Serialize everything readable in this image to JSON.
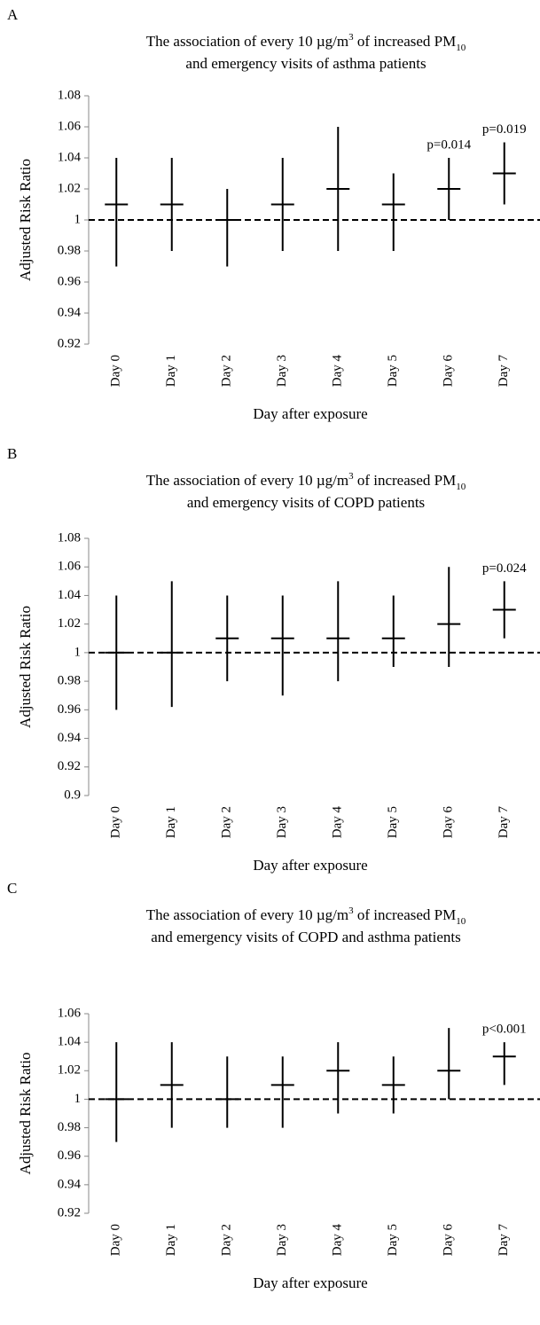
{
  "chart_data": [
    {
      "type": "interval",
      "panel": "A",
      "title": {
        "line1": [
          "The association of every 10 µg/m",
          "3",
          " of increased PM",
          "10"
        ],
        "line2": "and emergency visits of asthma patients"
      },
      "y_label": "Adjusted Risk Ratio",
      "x_label": "Day after exposure",
      "categories": [
        "Day 0",
        "Day 1",
        "Day 2",
        "Day 3",
        "Day 4",
        "Day 5",
        "Day 6",
        "Day 7"
      ],
      "values": [
        1.01,
        1.01,
        1.0,
        1.01,
        1.02,
        1.01,
        1.02,
        1.03
      ],
      "lows": [
        0.97,
        0.98,
        0.97,
        0.98,
        0.98,
        0.98,
        1.0,
        1.01
      ],
      "highs": [
        1.04,
        1.04,
        1.02,
        1.04,
        1.06,
        1.03,
        1.04,
        1.05
      ],
      "reference_line": 1,
      "annotations": [
        {
          "category": "Day 6",
          "text": "p=0.014"
        },
        {
          "category": "Day 7",
          "text": "p=0.019"
        }
      ],
      "ylim": [
        0.92,
        1.08
      ],
      "yticks": [
        0.92,
        0.94,
        0.96,
        0.98,
        1,
        1.02,
        1.04,
        1.06,
        1.08
      ],
      "color": "#000000"
    },
    {
      "type": "interval",
      "panel": "B",
      "title": {
        "line1": [
          "The association of every 10 µg/m",
          "3",
          " of increased PM",
          "10"
        ],
        "line2": "and emergency visits of COPD patients"
      },
      "y_label": "Adjusted Risk Ratio",
      "x_label": "Day after exposure",
      "categories": [
        "Day 0",
        "Day 1",
        "Day 2",
        "Day 3",
        "Day 4",
        "Day 5",
        "Day 6",
        "Day 7"
      ],
      "values": [
        1.0,
        1.0,
        1.01,
        1.01,
        1.01,
        1.01,
        1.02,
        1.03
      ],
      "lows": [
        0.96,
        0.962,
        0.98,
        0.97,
        0.98,
        0.99,
        0.99,
        1.01
      ],
      "highs": [
        1.04,
        1.05,
        1.04,
        1.04,
        1.05,
        1.04,
        1.06,
        1.05
      ],
      "reference_line": 1,
      "annotations": [
        {
          "category": "Day 7",
          "text": "p=0.024"
        }
      ],
      "ylim": [
        0.9,
        1.08
      ],
      "yticks": [
        0.9,
        0.92,
        0.94,
        0.96,
        0.98,
        1,
        1.02,
        1.04,
        1.06,
        1.08
      ],
      "color": "#000000"
    },
    {
      "type": "interval",
      "panel": "C",
      "title": {
        "line1": [
          "The association of every 10 µg/m",
          "3",
          " of increased PM",
          "10"
        ],
        "line2": "and emergency visits of COPD and asthma patients"
      },
      "y_label": "Adjusted Risk Ratio",
      "x_label": "Day after exposure",
      "categories": [
        "Day 0",
        "Day 1",
        "Day 2",
        "Day 3",
        "Day 4",
        "Day 5",
        "Day 6",
        "Day 7"
      ],
      "values": [
        1.0,
        1.01,
        1.0,
        1.01,
        1.02,
        1.01,
        1.02,
        1.03
      ],
      "lows": [
        0.97,
        0.98,
        0.98,
        0.98,
        0.99,
        0.99,
        1.0,
        1.01
      ],
      "highs": [
        1.04,
        1.04,
        1.03,
        1.03,
        1.04,
        1.03,
        1.05,
        1.04
      ],
      "reference_line": 1,
      "annotations": [
        {
          "category": "Day 7",
          "text": "p<0.001"
        }
      ],
      "ylim": [
        0.92,
        1.06
      ],
      "yticks": [
        0.92,
        0.94,
        0.96,
        0.98,
        1,
        1.02,
        1.04,
        1.06
      ],
      "color": "#000000"
    }
  ]
}
